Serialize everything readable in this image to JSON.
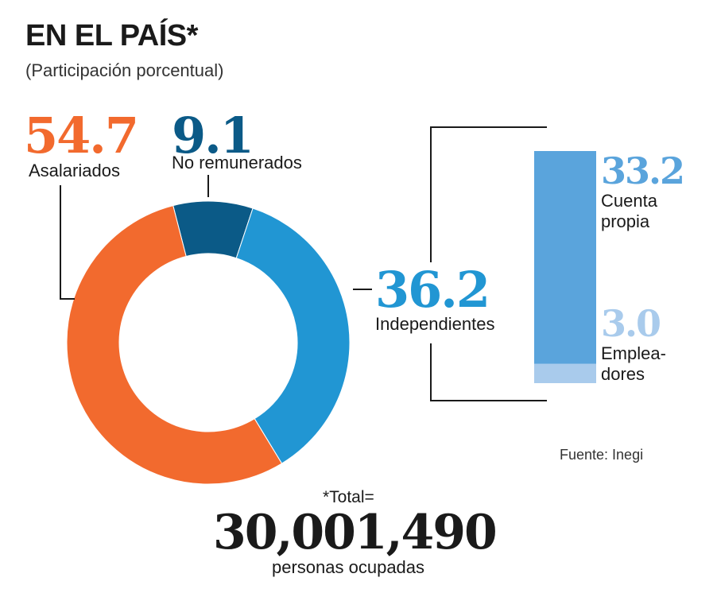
{
  "header": {
    "title": "EN EL PAÍS*",
    "subtitle": "(Participación porcentual)"
  },
  "colors": {
    "asalariados": "#f26a2e",
    "no_remunerados": "#0b5a87",
    "independientes": "#2196d3",
    "cuenta_propia": "#5aa4dc",
    "empleadores": "#a9cbec",
    "bracket": "#1a1a1a"
  },
  "chart_data": [
    {
      "type": "pie",
      "donut": true,
      "slices": [
        {
          "label": "Asalariados",
          "value": 54.7,
          "value_label": "54.7",
          "color": "#f26a2e"
        },
        {
          "label": "No remunerados",
          "value": 9.1,
          "value_label": "9.1",
          "color": "#0b5a87"
        },
        {
          "label": "Independientes",
          "value": 36.2,
          "value_label": "36.2",
          "color": "#2196d3"
        }
      ]
    },
    {
      "type": "bar",
      "stacked": true,
      "parent": "Independientes",
      "segments": [
        {
          "label_lines": [
            "Cuenta",
            "propia"
          ],
          "value": 33.2,
          "value_label": "33.2",
          "color": "#5aa4dc"
        },
        {
          "label_lines": [
            "Emplea-",
            "dores"
          ],
          "value": 3.0,
          "value_label": "3.0",
          "color": "#a9cbec"
        }
      ]
    }
  ],
  "total": {
    "label": "*Total=",
    "value": "30,001,490",
    "unit": "personas ocupadas"
  },
  "source": "Fuente: Inegi"
}
